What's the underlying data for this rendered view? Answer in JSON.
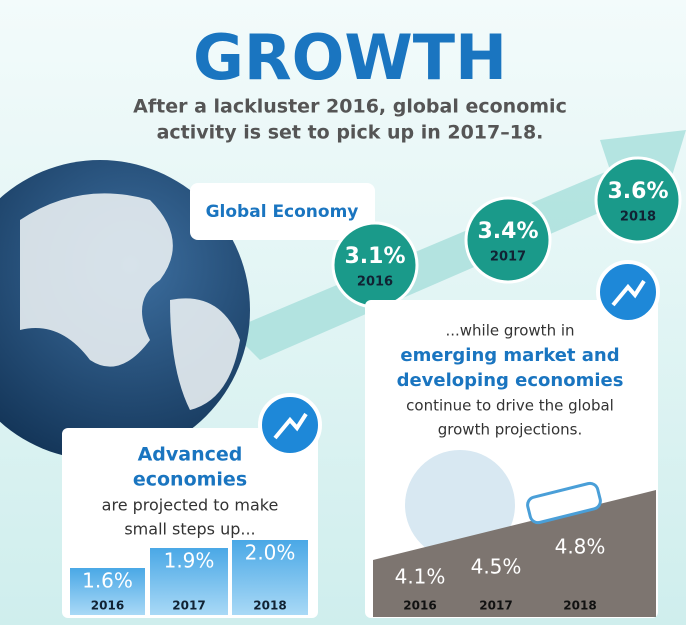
{
  "header": {
    "title": "GROWTH",
    "subtitle_lines": [
      "After a lackluster 2016, global economic",
      "activity is set to pick up in 2017–18."
    ]
  },
  "global": {
    "label": "Global Economy",
    "items": [
      {
        "value": "3.1%",
        "year": "2016"
      },
      {
        "value": "3.4%",
        "year": "2017"
      },
      {
        "value": "3.6%",
        "year": "2018"
      }
    ]
  },
  "advanced": {
    "heading_lines": [
      "Advanced",
      "economies"
    ],
    "body_lines": [
      "are projected to make",
      "small steps up..."
    ],
    "items": [
      {
        "value": "1.6%",
        "year": "2016"
      },
      {
        "value": "1.9%",
        "year": "2017"
      },
      {
        "value": "2.0%",
        "year": "2018"
      }
    ]
  },
  "emerging": {
    "lines": [
      "...while growth in"
    ],
    "highlight_lines": [
      "emerging market and",
      "developing economies"
    ],
    "body_lines": [
      "continue to drive the global",
      "growth projections."
    ],
    "items": [
      {
        "value": "4.1%",
        "year": "2016"
      },
      {
        "value": "4.5%",
        "year": "2017"
      },
      {
        "value": "4.8%",
        "year": "2018"
      }
    ]
  }
}
